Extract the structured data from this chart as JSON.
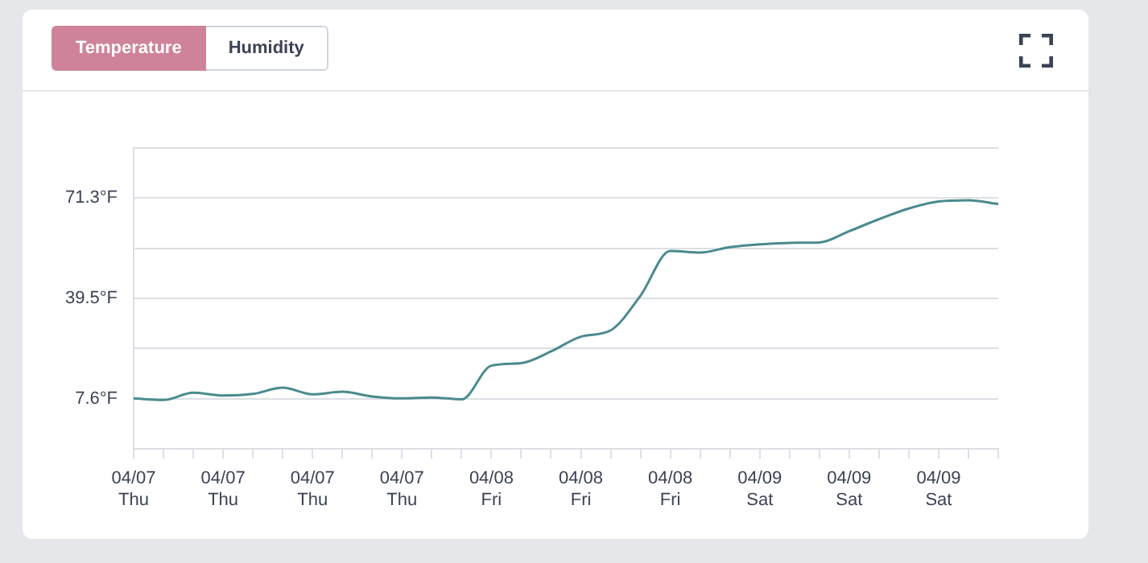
{
  "chart_data": {
    "type": "line",
    "annotations": [
      "Temperature",
      "Humidity"
    ],
    "categories": [
      "04/07\nThu",
      null,
      null,
      "04/07\nThu",
      null,
      null,
      "04/07\nThu",
      null,
      null,
      "04/07\nThu",
      null,
      null,
      "04/08\nFri",
      null,
      null,
      "04/08\nFri",
      null,
      null,
      "04/08\nFri",
      null,
      null,
      "04/09\nSat",
      null,
      null,
      "04/09\nSat",
      null,
      null,
      "04/09\nSat",
      null,
      null
    ],
    "series": [
      {
        "color": "#4a8a8e",
        "values": [
          7.7,
          7.2,
          9.5,
          8.6,
          9.1,
          11.1,
          9.0,
          9.8,
          8.3,
          7.7,
          8.0,
          7.4,
          18.1,
          18.9,
          22.6,
          27.3,
          29.3,
          40.3,
          54.5,
          54.0,
          55.7,
          56.6,
          57.1,
          57.2,
          60.8,
          64.6,
          68.0,
          70.2,
          70.6,
          69.4
        ]
      }
    ],
    "ylim": [
      -8.3,
      87.2
    ],
    "yticks": [
      {
        "value": -8.3,
        "label": null
      },
      {
        "value": 7.6,
        "label": "7.6°F"
      },
      {
        "value": 23.55,
        "label": null
      },
      {
        "value": 39.5,
        "label": "39.5°F"
      },
      {
        "value": 55.4,
        "label": null
      },
      {
        "value": 71.3,
        "label": "71.3°F"
      },
      {
        "value": 87.2,
        "label": null
      }
    ],
    "grid": "y",
    "marker": "none",
    "line_style": "solid"
  }
}
